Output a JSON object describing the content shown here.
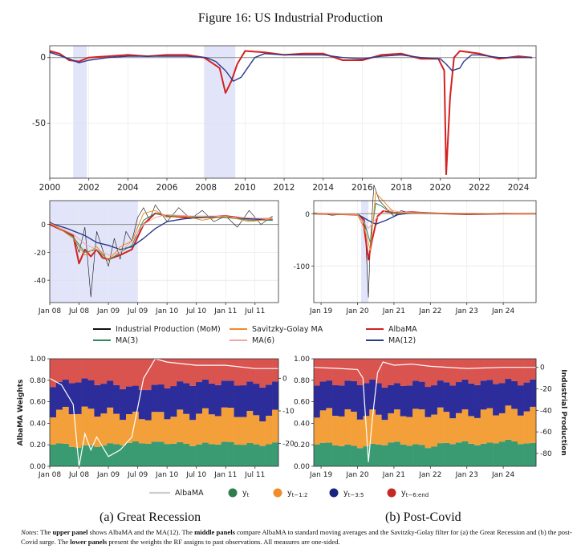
{
  "figure_title": "Figure 16: US Industrial Production",
  "captions": {
    "a": "(a) Great Recession",
    "b": "(b) Post-Covid"
  },
  "notes": {
    "label": "Notes",
    "p1": ": The ",
    "b1": "upper panel",
    "p2": " shows AlbaMA and the MA(12). The ",
    "b2": "middle panels",
    "p3": " compare AlbaMA to standard moving averages and the Savitzky-Golay filter for (a) the Great Recession and (b) the post-Covid surge. The ",
    "b3": "lower panels",
    "p4": " present the weights the RF assigns to past observations. All measures are one-sided."
  },
  "colors": {
    "raw": "#111111",
    "albama": "#d32020",
    "ma3": "#2e8b57",
    "ma6": "#f4a6a6",
    "ma12": "#2b3a8f",
    "sg": "#f08c2a",
    "w_t": "#3a9b73",
    "w_12": "#f4a03a",
    "w_35": "#2c2c9a",
    "w_6": "#d9534f",
    "shade": "#d8dcf7"
  },
  "legend_mid": [
    {
      "label": "Industrial Production (MoM)",
      "color": "#111111"
    },
    {
      "label": "Savitzky-Golay MA",
      "color": "#f08c2a"
    },
    {
      "label": "AlbaMA",
      "color": "#d32020"
    },
    {
      "label": "MA(3)",
      "color": "#2e8b57"
    },
    {
      "label": "MA(6)",
      "color": "#f4a6a6"
    },
    {
      "label": "MA(12)",
      "color": "#2b3a8f"
    }
  ],
  "legend_low": [
    {
      "label": "AlbaMA",
      "type": "line",
      "color": "#cccccc"
    },
    {
      "label": "y",
      "sub": "t",
      "type": "dot",
      "color": "#2e7d4f"
    },
    {
      "label": "y",
      "sub": "t−1:2",
      "type": "dot",
      "color": "#f08c2a"
    },
    {
      "label": "y",
      "sub": "t−3:5",
      "type": "dot",
      "color": "#1a237e"
    },
    {
      "label": "y",
      "sub": "t−6:end",
      "type": "dot",
      "color": "#c62828"
    }
  ],
  "chart_data": [
    {
      "id": "top",
      "type": "line",
      "xlim": [
        2000,
        2024.9
      ],
      "ylim": [
        -92,
        9
      ],
      "xticks": [
        "2000",
        "2002",
        "2004",
        "2006",
        "2008",
        "2010",
        "2012",
        "2014",
        "2016",
        "2018",
        "2020",
        "2022",
        "2024"
      ],
      "yticks": [
        "0",
        "-50"
      ],
      "recessions": [
        [
          2001.2,
          2001.9
        ],
        [
          2007.9,
          2009.5
        ]
      ],
      "series": [
        {
          "name": "AlbaMA",
          "x": [
            2000,
            2000.5,
            2001,
            2001.5,
            2002,
            2003,
            2004,
            2005,
            2006,
            2007,
            2007.9,
            2008.3,
            2008.7,
            2009.0,
            2009.3,
            2009.6,
            2010,
            2011,
            2012,
            2013,
            2014,
            2015,
            2016,
            2017,
            2018,
            2019,
            2019.9,
            2020.2,
            2020.3,
            2020.5,
            2020.7,
            2021,
            2022,
            2023,
            2024,
            2024.7
          ],
          "y": [
            5,
            3,
            -2,
            -3,
            0,
            1,
            2,
            1,
            2,
            2,
            0,
            -4,
            -8,
            -27,
            -18,
            -5,
            5,
            4,
            2,
            3,
            3,
            -2,
            -2,
            2,
            3,
            -1,
            -1,
            -10,
            -89,
            -30,
            0,
            5,
            3,
            -1,
            1,
            0
          ]
        },
        {
          "name": "MA(12)",
          "x": [
            2000,
            2001,
            2001.5,
            2002,
            2003,
            2004,
            2005,
            2006,
            2007,
            2008,
            2008.5,
            2009,
            2009.4,
            2009.8,
            2010.5,
            2011,
            2012,
            2013,
            2014,
            2015,
            2016,
            2017,
            2018,
            2019,
            2020,
            2020.3,
            2020.6,
            2021,
            2021.2,
            2021.6,
            2022,
            2023,
            2024,
            2024.7
          ],
          "y": [
            4,
            -1,
            -4,
            -2,
            0,
            1,
            1,
            1,
            1,
            0,
            -3,
            -10,
            -18,
            -15,
            0,
            3,
            2,
            2,
            2,
            0,
            -1,
            1,
            2,
            0,
            -1,
            -5,
            -10,
            -8,
            -3,
            2,
            2,
            0,
            0,
            0
          ]
        }
      ]
    },
    {
      "id": "mid_a",
      "type": "line",
      "xlim": [
        2008.0,
        2011.9
      ],
      "ylim": [
        -56,
        17
      ],
      "xticks": [
        "Jan 08",
        "Jul 08",
        "Jan 09",
        "Jul 09",
        "Jan 10",
        "Jul 10",
        "Jan 11",
        "Jul 11"
      ],
      "yticks": [
        "0",
        "-20",
        "-40"
      ],
      "recessions": [
        [
          2008.0,
          2009.5
        ]
      ],
      "series": [
        {
          "name": "Industrial Production (MoM)",
          "x": [
            2008.0,
            2008.2,
            2008.4,
            2008.5,
            2008.6,
            2008.7,
            2008.8,
            2008.9,
            2009.0,
            2009.1,
            2009.2,
            2009.3,
            2009.4,
            2009.5,
            2009.6,
            2009.7,
            2009.8,
            2009.9,
            2010.0,
            2010.2,
            2010.4,
            2010.6,
            2010.8,
            2011.0,
            2011.2,
            2011.4,
            2011.6,
            2011.8
          ],
          "y": [
            2,
            -4,
            -8,
            -20,
            -2,
            -52,
            -5,
            -18,
            -30,
            -10,
            -25,
            -5,
            -12,
            5,
            12,
            3,
            14,
            8,
            2,
            12,
            4,
            10,
            2,
            6,
            -2,
            10,
            0,
            6
          ]
        },
        {
          "name": "AlbaMA",
          "x": [
            2008.0,
            2008.2,
            2008.4,
            2008.5,
            2008.6,
            2008.7,
            2008.8,
            2008.9,
            2009.0,
            2009.2,
            2009.4,
            2009.6,
            2009.8,
            2010.0,
            2010.3,
            2010.6,
            2011.0,
            2011.4,
            2011.8
          ],
          "y": [
            0,
            -4,
            -8,
            -28,
            -18,
            -23,
            -18,
            -24,
            -25,
            -22,
            -18,
            0,
            8,
            6,
            5,
            5,
            6,
            4,
            4
          ]
        },
        {
          "name": "MA(12)",
          "x": [
            2008.0,
            2008.3,
            2008.6,
            2008.8,
            2009.0,
            2009.2,
            2009.4,
            2009.6,
            2009.8,
            2010.0,
            2010.3,
            2010.6,
            2011.0,
            2011.4,
            2011.8
          ],
          "y": [
            1,
            -3,
            -8,
            -13,
            -15,
            -18,
            -16,
            -10,
            -3,
            2,
            4,
            5,
            5,
            4,
            3
          ]
        },
        {
          "name": "MA(3)",
          "x": [
            2008.0,
            2008.2,
            2008.4,
            2008.6,
            2008.8,
            2009.0,
            2009.2,
            2009.4,
            2009.6,
            2009.8,
            2010.0,
            2010.3,
            2010.6,
            2011.0,
            2011.4,
            2011.8
          ],
          "y": [
            1,
            -4,
            -9,
            -20,
            -18,
            -26,
            -20,
            -15,
            3,
            8,
            6,
            6,
            5,
            5,
            3,
            3
          ]
        },
        {
          "name": "MA(6)",
          "x": [
            2008.0,
            2008.2,
            2008.4,
            2008.6,
            2008.8,
            2009.0,
            2009.2,
            2009.4,
            2009.6,
            2009.8,
            2010.0,
            2010.4,
            2010.8,
            2011.2,
            2011.8
          ],
          "y": [
            1,
            -3,
            -7,
            -14,
            -18,
            -22,
            -20,
            -12,
            0,
            5,
            7,
            6,
            6,
            5,
            4
          ]
        },
        {
          "name": "Savitzky-Golay MA",
          "x": [
            2008.0,
            2008.2,
            2008.4,
            2008.6,
            2008.8,
            2009.0,
            2009.2,
            2009.4,
            2009.6,
            2009.8,
            2010.0,
            2010.3,
            2010.6,
            2011.0,
            2011.4,
            2011.8
          ],
          "y": [
            1,
            -4,
            -10,
            -22,
            -16,
            -26,
            -16,
            -12,
            8,
            10,
            5,
            6,
            3,
            6,
            2,
            4
          ]
        }
      ]
    },
    {
      "id": "mid_b",
      "type": "line",
      "xlim": [
        2018.8,
        2024.9
      ],
      "ylim": [
        -170,
        25
      ],
      "xticks": [
        "Jan 19",
        "Jan 20",
        "Jan 21",
        "Jan 22",
        "Jan 23",
        "Jan 24"
      ],
      "yticks": [
        "0",
        "-100"
      ],
      "recessions": [
        [
          2020.1,
          2020.3
        ]
      ],
      "series": [
        {
          "name": "Industrial Production (MoM)",
          "x": [
            2018.8,
            2019.3,
            2019.8,
            2020.1,
            2020.2,
            2020.3,
            2020.35,
            2020.45,
            2020.6,
            2020.8,
            2021.0,
            2021.2,
            2021.4,
            2022,
            2023,
            2024,
            2024.9
          ],
          "y": [
            2,
            -3,
            0,
            -5,
            -12,
            -160,
            -60,
            55,
            25,
            10,
            -5,
            6,
            2,
            2,
            -1,
            1,
            0
          ]
        },
        {
          "name": "AlbaMA",
          "x": [
            2018.8,
            2019.5,
            2020.0,
            2020.15,
            2020.3,
            2020.4,
            2020.55,
            2020.7,
            2021.0,
            2021.5,
            2022,
            2023,
            2024,
            2024.9
          ],
          "y": [
            0,
            -1,
            -2,
            -10,
            -88,
            -50,
            -5,
            5,
            2,
            3,
            1,
            -1,
            0,
            0
          ]
        },
        {
          "name": "MA(12)",
          "x": [
            2018.8,
            2019.5,
            2020.0,
            2020.3,
            2020.5,
            2020.8,
            2021.1,
            2021.5,
            2022,
            2023,
            2024,
            2024.9
          ],
          "y": [
            0,
            -1,
            -1,
            -13,
            -20,
            -12,
            -2,
            2,
            1,
            0,
            0,
            0
          ]
        },
        {
          "name": "MA(3)",
          "x": [
            2018.8,
            2019.5,
            2020.0,
            2020.2,
            2020.35,
            2020.5,
            2020.65,
            2020.9,
            2021.2,
            2022,
            2023,
            2024.9
          ],
          "y": [
            0,
            -1,
            -2,
            -20,
            -55,
            20,
            15,
            3,
            2,
            1,
            0,
            0
          ]
        },
        {
          "name": "MA(6)",
          "x": [
            2018.8,
            2020.0,
            2020.3,
            2020.5,
            2020.8,
            2021.2,
            2022,
            2024.9
          ],
          "y": [
            0,
            -1,
            -28,
            -10,
            8,
            3,
            1,
            0
          ]
        },
        {
          "name": "Savitzky-Golay MA",
          "x": [
            2018.8,
            2020.0,
            2020.2,
            2020.35,
            2020.5,
            2020.7,
            2021.0,
            2022,
            2024.9
          ],
          "y": [
            0,
            -2,
            -30,
            -70,
            40,
            25,
            2,
            1,
            0
          ]
        }
      ]
    },
    {
      "id": "low_a",
      "type": "area",
      "xlim": [
        2008.0,
        2011.9
      ],
      "ylim": [
        0,
        1
      ],
      "xticks": [
        "Jan 08",
        "Jul 08",
        "Jan 09",
        "Jul 09",
        "Jan 10",
        "Jul 10",
        "Jan 11",
        "Jul 11"
      ],
      "yticks": [
        "0.00",
        "0.20",
        "0.40",
        "0.60",
        "0.80",
        "1.00"
      ],
      "y2ticks": [
        "0",
        "-10",
        "-20"
      ],
      "ylabel": "AlbaMA Weights",
      "stack_series": [
        {
          "name": "yt",
          "x": [
            2008.0,
            2008.5,
            2009.0,
            2009.5,
            2010.0,
            2010.5,
            2011.0,
            2011.5,
            2011.9
          ],
          "values": [
            0.22,
            0.18,
            0.2,
            0.22,
            0.22,
            0.2,
            0.22,
            0.2,
            0.21
          ]
        },
        {
          "name": "yt−1:2",
          "x": [
            2008.0,
            2008.5,
            2009.0,
            2009.5,
            2010.0,
            2010.5,
            2011.0,
            2011.5,
            2011.9
          ],
          "values": [
            0.28,
            0.34,
            0.3,
            0.24,
            0.26,
            0.28,
            0.3,
            0.26,
            0.27
          ]
        },
        {
          "name": "yt−3:5",
          "x": [
            2008.0,
            2008.5,
            2009.0,
            2009.5,
            2010.0,
            2010.5,
            2011.0,
            2011.5,
            2011.9
          ],
          "values": [
            0.26,
            0.28,
            0.27,
            0.26,
            0.27,
            0.3,
            0.26,
            0.3,
            0.28
          ]
        }
      ],
      "series": [
        {
          "name": "AlbaMA",
          "x": [
            2008.0,
            2008.2,
            2008.4,
            2008.5,
            2008.6,
            2008.7,
            2008.8,
            2009.0,
            2009.2,
            2009.4,
            2009.6,
            2009.8,
            2010.0,
            2010.5,
            2011.0,
            2011.5,
            2011.9
          ],
          "y": [
            0,
            -2,
            -8,
            -27,
            -17,
            -22,
            -18,
            -24,
            -22,
            -18,
            0,
            6,
            5,
            4,
            4,
            3,
            3
          ]
        }
      ],
      "y2lim": [
        -27,
        6
      ]
    },
    {
      "id": "low_b",
      "type": "area",
      "xlim": [
        2018.8,
        2024.9
      ],
      "ylim": [
        0,
        1
      ],
      "xticks": [
        "Jan 19",
        "Jan 20",
        "Jan 21",
        "Jan 22",
        "Jan 23",
        "Jan 24"
      ],
      "yticks": [
        "0.00",
        "0.20",
        "0.40",
        "0.60",
        "0.80",
        "1.00"
      ],
      "y2ticks": [
        "0",
        "-20",
        "-40",
        "-60",
        "-80"
      ],
      "y2label": "Industrial Production",
      "stack_series": [
        {
          "name": "yt",
          "x": [
            2018.8,
            2019.5,
            2020.0,
            2020.5,
            2021.0,
            2021.5,
            2022.0,
            2022.5,
            2023.0,
            2023.5,
            2024.0,
            2024.5,
            2024.9
          ],
          "values": [
            0.22,
            0.2,
            0.18,
            0.2,
            0.22,
            0.2,
            0.18,
            0.22,
            0.22,
            0.2,
            0.24,
            0.22,
            0.2
          ]
        },
        {
          "name": "yt−1:2",
          "x": [
            2018.8,
            2019.5,
            2020.0,
            2020.5,
            2021.0,
            2021.5,
            2022.0,
            2022.5,
            2023.0,
            2023.5,
            2024.0,
            2024.5,
            2024.9
          ],
          "values": [
            0.28,
            0.3,
            0.3,
            0.28,
            0.26,
            0.3,
            0.32,
            0.28,
            0.26,
            0.3,
            0.28,
            0.3,
            0.3
          ]
        },
        {
          "name": "yt−3:5",
          "x": [
            2018.8,
            2019.5,
            2020.0,
            2020.5,
            2021.0,
            2021.5,
            2022.0,
            2022.5,
            2023.0,
            2023.5,
            2024.0,
            2024.5,
            2024.9
          ],
          "values": [
            0.28,
            0.27,
            0.3,
            0.3,
            0.26,
            0.28,
            0.26,
            0.28,
            0.3,
            0.28,
            0.27,
            0.26,
            0.28
          ]
        }
      ],
      "series": [
        {
          "name": "AlbaMA",
          "x": [
            2018.8,
            2019.5,
            2020.0,
            2020.15,
            2020.3,
            2020.4,
            2020.55,
            2020.7,
            2021.0,
            2021.5,
            2022,
            2023,
            2024,
            2024.9
          ],
          "y": [
            0,
            -1,
            -2,
            -10,
            -88,
            -50,
            -5,
            5,
            2,
            3,
            1,
            -1,
            0,
            0
          ]
        }
      ],
      "y2lim": [
        -92,
        8
      ]
    }
  ]
}
